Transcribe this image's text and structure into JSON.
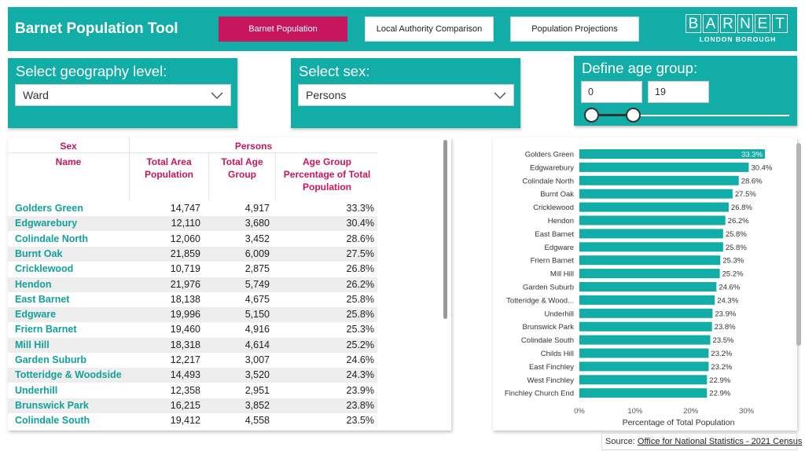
{
  "header": {
    "title": "Barnet Population Tool",
    "nav": [
      {
        "label": "Barnet Population",
        "active": true
      },
      {
        "label": "Local Authority Comparison",
        "active": false
      },
      {
        "label": "Population Projections",
        "active": false
      }
    ],
    "logo_letters": [
      "B",
      "A",
      "R",
      "N",
      "E",
      "T"
    ],
    "logo_sub": "LONDON BOROUGH"
  },
  "filters": {
    "geography": {
      "title": "Select geography level:",
      "value": "Ward"
    },
    "sex": {
      "title": "Select sex:",
      "value": "Persons"
    },
    "age": {
      "title": "Define age group:",
      "min": "0",
      "max": "19"
    }
  },
  "table": {
    "header_sex": "Sex",
    "header_persons": "Persons",
    "columns": [
      "Name",
      "Total Area Population",
      "Total Age Group",
      "Age Group Percentage of Total Population"
    ],
    "rows": [
      {
        "name": "Golders Green",
        "total": "14,747",
        "age": "4,917",
        "pct": "33.3%"
      },
      {
        "name": "Edgwarebury",
        "total": "12,110",
        "age": "3,680",
        "pct": "30.4%"
      },
      {
        "name": "Colindale North",
        "total": "12,060",
        "age": "3,452",
        "pct": "28.6%"
      },
      {
        "name": "Burnt Oak",
        "total": "21,859",
        "age": "6,009",
        "pct": "27.5%"
      },
      {
        "name": "Cricklewood",
        "total": "10,719",
        "age": "2,875",
        "pct": "26.8%"
      },
      {
        "name": "Hendon",
        "total": "21,976",
        "age": "5,749",
        "pct": "26.2%"
      },
      {
        "name": "East Barnet",
        "total": "18,138",
        "age": "4,675",
        "pct": "25.8%"
      },
      {
        "name": "Edgware",
        "total": "19,996",
        "age": "5,150",
        "pct": "25.8%"
      },
      {
        "name": "Friern Barnet",
        "total": "19,460",
        "age": "4,916",
        "pct": "25.3%"
      },
      {
        "name": "Mill Hill",
        "total": "18,318",
        "age": "4,614",
        "pct": "25.2%"
      },
      {
        "name": "Garden Suburb",
        "total": "12,217",
        "age": "3,007",
        "pct": "24.6%"
      },
      {
        "name": "Totteridge & Woodside",
        "total": "14,493",
        "age": "3,520",
        "pct": "24.3%"
      },
      {
        "name": "Underhill",
        "total": "12,358",
        "age": "2,951",
        "pct": "23.9%"
      },
      {
        "name": "Brunswick Park",
        "total": "16,215",
        "age": "3,852",
        "pct": "23.8%"
      },
      {
        "name": "Colindale South",
        "total": "19,412",
        "age": "4,558",
        "pct": "23.5%"
      }
    ]
  },
  "chart_data": {
    "type": "bar",
    "orientation": "horizontal",
    "categories": [
      "Golders Green",
      "Edgwarebury",
      "Colindale North",
      "Burnt Oak",
      "Cricklewood",
      "Hendon",
      "East Barnet",
      "Edgware",
      "Friern Barnet",
      "Mill Hill",
      "Garden Suburb",
      "Totteridge & Wood...",
      "Underhill",
      "Brunswick Park",
      "Colindale South",
      "Childs Hill",
      "East Finchley",
      "West Finchley",
      "Finchley Church End"
    ],
    "values": [
      33.3,
      30.4,
      28.6,
      27.5,
      26.8,
      26.2,
      25.8,
      25.8,
      25.3,
      25.2,
      24.6,
      24.3,
      23.9,
      23.8,
      23.5,
      23.2,
      23.2,
      22.9,
      22.9
    ],
    "data_labels": [
      "33.3%",
      "30.4%",
      "28.6%",
      "27.5%",
      "26.8%",
      "26.2%",
      "25.8%",
      "25.8%",
      "25.3%",
      "25.2%",
      "24.6%",
      "24.3%",
      "23.9%",
      "23.8%",
      "23.5%",
      "23.2%",
      "23.2%",
      "22.9%",
      "22.9%"
    ],
    "xticks": [
      "0%",
      "10%",
      "20%",
      "30%"
    ],
    "xtick_values": [
      0,
      10,
      20,
      30
    ],
    "xlim": [
      0,
      33.3
    ],
    "xlabel": "Percentage of Total Population",
    "grid": false,
    "bar_color": "#13ADA8"
  },
  "source": {
    "prefix": "Source:",
    "link": "Office for National Statistics - 2021 Census"
  },
  "colors": {
    "teal": "#13ADA8",
    "magenta": "#C7165E"
  }
}
